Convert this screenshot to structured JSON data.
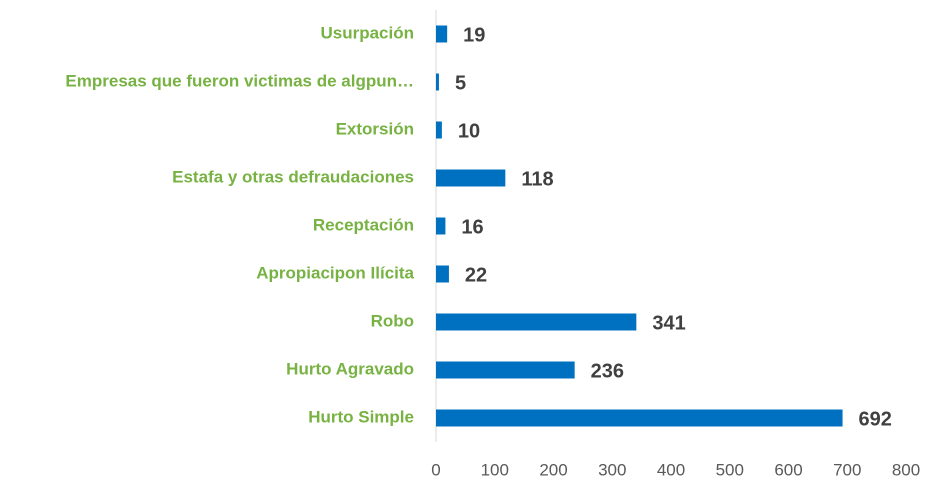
{
  "chart_data": {
    "type": "bar",
    "orientation": "horizontal",
    "categories": [
      "Usurpación",
      "Empresas que fueron victimas de algpun…",
      "Extorsión",
      "Estafa y otras defraudaciones",
      "Receptación",
      "Apropiacipon Ilícita",
      "Robo",
      "Hurto Agravado",
      "Hurto Simple"
    ],
    "values": [
      19,
      5,
      10,
      118,
      16,
      22,
      341,
      236,
      692
    ],
    "color": "#0070c0",
    "xlim": [
      0,
      800
    ],
    "xticks": [
      0,
      100,
      200,
      300,
      400,
      500,
      600,
      700,
      800
    ],
    "grid": false
  }
}
